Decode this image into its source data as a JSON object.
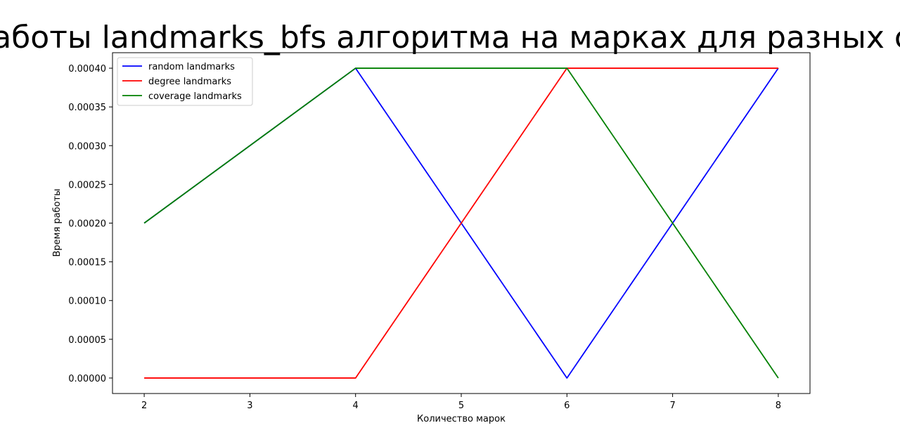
{
  "chart_data": {
    "type": "line",
    "title": "Время работы landmarks_bfs алгоритма на марках для разных стратегий",
    "xlabel": "Количество марок",
    "ylabel": "Время работы",
    "x": [
      2,
      4,
      6,
      8
    ],
    "xlim": [
      1.7,
      8.3
    ],
    "ylim": [
      -2e-05,
      0.00042
    ],
    "xticks": [
      "2",
      "3",
      "4",
      "5",
      "6",
      "7",
      "8"
    ],
    "yticks": [
      "0.00000",
      "0.00005",
      "0.00010",
      "0.00015",
      "0.00020",
      "0.00025",
      "0.00030",
      "0.00035",
      "0.00040"
    ],
    "grid": false,
    "legend_position": "top-left",
    "series": [
      {
        "name": "random landmarks",
        "color": "#0000ff",
        "values": [
          0.0002,
          0.0004,
          0.0,
          0.0004
        ]
      },
      {
        "name": "degree landmarks",
        "color": "#ff0000",
        "values": [
          0.0,
          0.0,
          0.0004,
          0.0004
        ]
      },
      {
        "name": "coverage landmarks",
        "color": "#008000",
        "values": [
          0.0002,
          0.0004,
          0.0004,
          0.0
        ]
      }
    ]
  }
}
